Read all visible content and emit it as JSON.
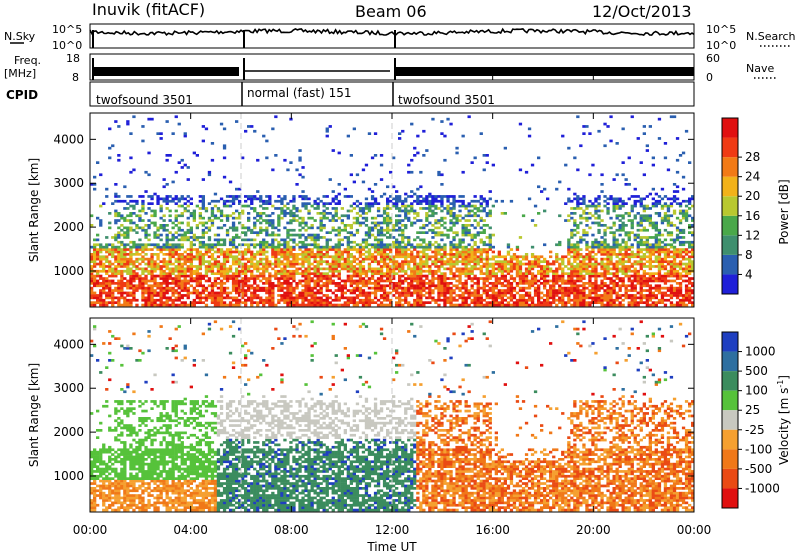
{
  "header": {
    "station": "Inuvik (fitACF)",
    "beam": "Beam 06",
    "date": "12/Oct/2013"
  },
  "strips": {
    "nsky_label": "N.Sky",
    "nsky_ticks": [
      "10^5",
      "10^0"
    ],
    "nsearch_label": "N.Search",
    "nsearch_ticks": [
      "10^5",
      "10^0"
    ],
    "freq_label": "Freq.",
    "freq_unit": "[MHz]",
    "freq_ticks": [
      "18",
      "8"
    ],
    "nave_label": "Nave",
    "nave_ticks": [
      "60",
      "0"
    ],
    "cpid_label": "CPID",
    "cpid_segments": [
      {
        "label": "twofsound 3501",
        "start_hour": 0,
        "end_hour": 6
      },
      {
        "label": "normal (fast) 151",
        "start_hour": 6,
        "end_hour": 12
      },
      {
        "label": "twofsound 3501",
        "start_hour": 12,
        "end_hour": 24
      }
    ]
  },
  "chart_data": [
    {
      "type": "heatmap",
      "name": "power-panel",
      "ylabel": "Slant Range [km]",
      "y_ticks": [
        1000,
        2000,
        3000,
        4000
      ],
      "ylim": [
        180,
        4600
      ],
      "xlim": [
        0,
        24
      ],
      "colorbar": {
        "label": "Power [dB]",
        "ticks": [
          "4",
          "8",
          "12",
          "16",
          "20",
          "24",
          "28"
        ],
        "colors": [
          "#1f1fd8",
          "#2a5fb0",
          "#3f8f6e",
          "#4aa84a",
          "#b8c830",
          "#f2b21a",
          "#f27a16",
          "#ef3a14",
          "#e01010"
        ]
      }
    },
    {
      "type": "heatmap",
      "name": "velocity-panel",
      "ylabel": "Slant Range [km]",
      "y_ticks": [
        1000,
        2000,
        3000,
        4000
      ],
      "ylim": [
        180,
        4600
      ],
      "xlim": [
        0,
        24
      ],
      "colorbar": {
        "label": "Velocity [m s",
        "label_sup": "-1",
        "label_end": "]",
        "ticks": [
          "1000",
          "500",
          "100",
          "25",
          "-25",
          "-100",
          "-500",
          "-1000"
        ],
        "colors": [
          "#1f3fc0",
          "#2e6fa0",
          "#3b8c5e",
          "#56c23a",
          "#c8c8c0",
          "#f5a030",
          "#f07818",
          "#ea4a14",
          "#e01010"
        ]
      }
    }
  ],
  "x_axis": {
    "label": "Time UT",
    "ticks": [
      "00:00",
      "04:00",
      "08:00",
      "12:00",
      "16:00",
      "20:00",
      "00:00"
    ],
    "tick_hours": [
      0,
      4,
      8,
      12,
      16,
      20,
      24
    ]
  }
}
